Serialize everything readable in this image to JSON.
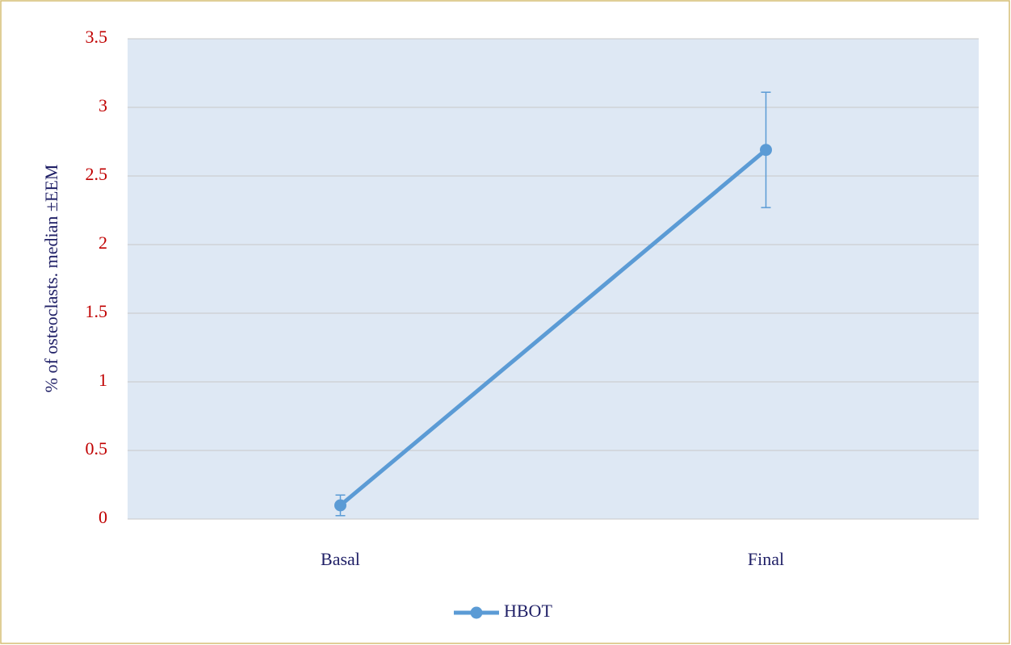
{
  "chart_data": {
    "type": "line",
    "y_label": "% of osteoclasts. median ±EEM",
    "categories": [
      "Basal",
      "Final"
    ],
    "series": [
      {
        "name": "HBOT",
        "color": "#5b9bd5",
        "values": [
          0.1,
          2.69
        ],
        "errors": [
          0.075,
          0.42
        ]
      }
    ],
    "ylim": [
      0,
      3.5
    ],
    "yticks": [
      0,
      0.5,
      1,
      1.5,
      2,
      2.5,
      3,
      3.5
    ],
    "grid": true,
    "legend": "bottom"
  }
}
